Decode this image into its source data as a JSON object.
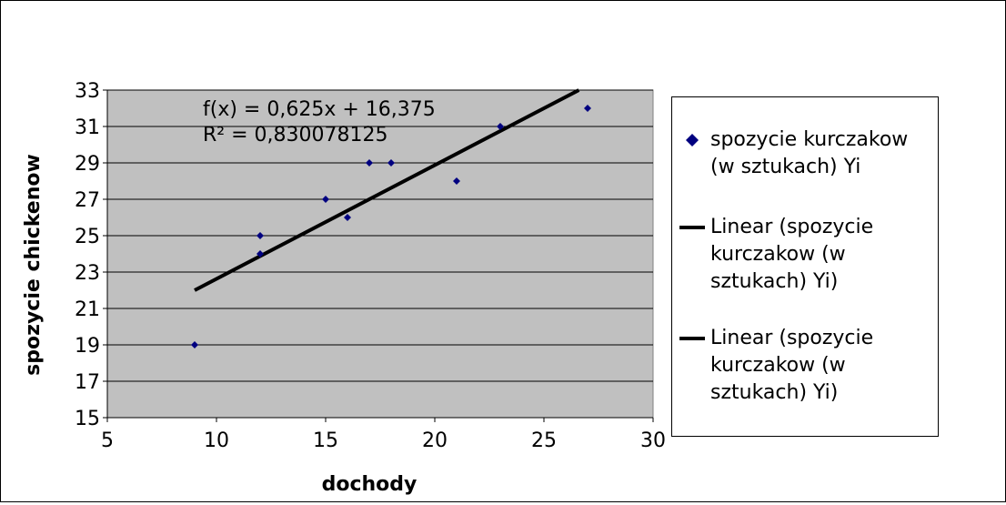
{
  "chart_data": {
    "type": "scatter",
    "xlabel": "dochody",
    "ylabel": "spozycie chickenow",
    "xlim": [
      5,
      30
    ],
    "ylim": [
      15,
      33
    ],
    "xticks": [
      "5",
      "10",
      "15",
      "20",
      "25",
      "30"
    ],
    "yticks": [
      "15",
      "17",
      "19",
      "21",
      "23",
      "25",
      "27",
      "29",
      "31",
      "33"
    ],
    "grid": "horizontal",
    "legend_position": "right",
    "plot_background": "#c0c0c0",
    "series": [
      {
        "name": "spozycie kurczakow (w sztukach) Yi",
        "marker": "diamond",
        "color": "#000080",
        "points": [
          {
            "x": 9,
            "y": 19
          },
          {
            "x": 12,
            "y": 24
          },
          {
            "x": 12,
            "y": 25
          },
          {
            "x": 15,
            "y": 27
          },
          {
            "x": 16,
            "y": 26
          },
          {
            "x": 17,
            "y": 29
          },
          {
            "x": 18,
            "y": 29
          },
          {
            "x": 21,
            "y": 28
          },
          {
            "x": 23,
            "y": 31
          },
          {
            "x": 27,
            "y": 32
          }
        ]
      }
    ],
    "trendline": {
      "slope": 0.625,
      "intercept": 16.375,
      "x_range": [
        9,
        26.6
      ],
      "color": "#000000",
      "equation": "f(x) = 0,625x + 16,375",
      "r_squared": "R² = 0,830078125"
    },
    "legend": [
      {
        "label": "spozycie kurczakow (w sztukach) Yi",
        "symbol": "diamond",
        "color": "#000080"
      },
      {
        "label": "Linear (spozycie kurczakow (w sztukach) Yi)",
        "symbol": "line",
        "color": "#000000"
      },
      {
        "label": "Linear (spozycie kurczakow (w sztukach) Yi)",
        "symbol": "line",
        "color": "#000000"
      }
    ]
  }
}
